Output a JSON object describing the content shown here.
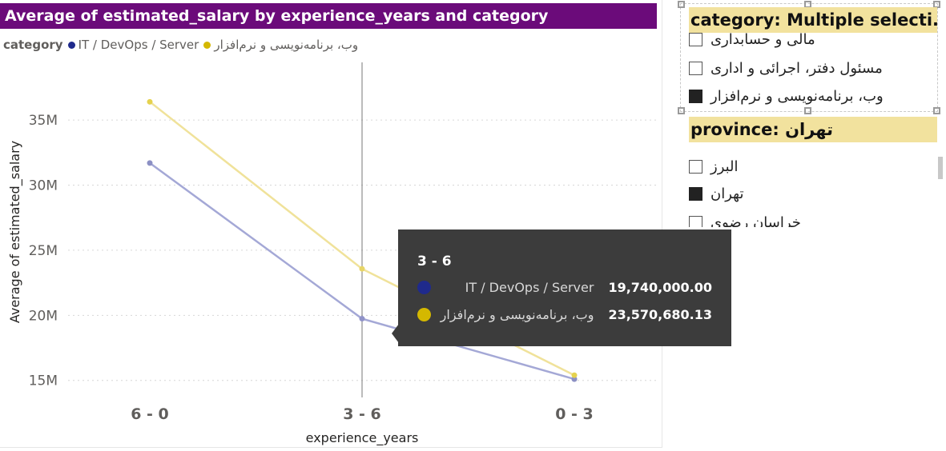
{
  "chart_data": {
    "type": "line",
    "title": "Average of estimated_salary by experience_years and category",
    "xlabel": "experience_years",
    "ylabel": "Average of estimated_salary",
    "categories": [
      "6 - 0",
      "3 - 6",
      "0 - 3"
    ],
    "y_ticks": [
      "15M",
      "20M",
      "25M",
      "30M",
      "35M"
    ],
    "ylim": [
      14000000,
      39000000
    ],
    "grid": true,
    "legend_title": "category",
    "legend_position": "top-left",
    "series": [
      {
        "name": "IT / DevOps / Server",
        "color": "#1f2a8c",
        "values": [
          31700000,
          19740000,
          15100000
        ]
      },
      {
        "name": "وب، برنامه‌نویسی و نرم‌افزار",
        "color": "#d4b800",
        "values": [
          36400000,
          23570680.13,
          15400000
        ]
      }
    ]
  },
  "tooltip": {
    "title": "3 - 6",
    "rows": [
      {
        "label": "IT / DevOps / Server",
        "value": "19,740,000.00",
        "color": "#1f2a8c"
      },
      {
        "label": "وب، برنامه‌نویسی و نرم‌افزار",
        "value": "23,570,680.13",
        "color": "#d4b800"
      }
    ]
  },
  "slicers": {
    "category": {
      "header": "category: Multiple selecti...",
      "items": [
        {
          "label": "مالی و حسابداری",
          "checked": false
        },
        {
          "label": "مسئول دفتر، اجرائی و اداری",
          "checked": false
        },
        {
          "label": "وب، برنامه‌نویسی و نرم‌افزار",
          "checked": true
        }
      ]
    },
    "province": {
      "header": "province: تهران",
      "items": [
        {
          "label": "البرز",
          "checked": false
        },
        {
          "label": "تهران",
          "checked": true
        },
        {
          "label": "خراسان رضوی",
          "checked": false
        }
      ]
    }
  },
  "colors": {
    "title_bg": "#6b0b7a",
    "slicer_header_bg": "#f2e29e",
    "tooltip_bg": "#3c3c3c"
  }
}
